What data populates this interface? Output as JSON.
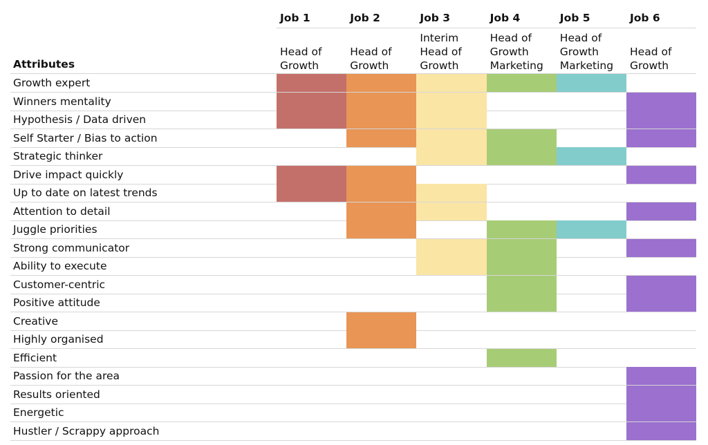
{
  "header": {
    "attributes_label": "Attributes"
  },
  "jobs": [
    {
      "label": "Job 1",
      "title": "Head of Growth",
      "color": "#c4706a"
    },
    {
      "label": "Job 2",
      "title": "Head of Growth",
      "color": "#e89556"
    },
    {
      "label": "Job 3",
      "title": "Interim Head of Growth",
      "color": "#fae5a5"
    },
    {
      "label": "Job 4",
      "title": "Head of Growth Marketing",
      "color": "#a7cc76"
    },
    {
      "label": "Job 5",
      "title": "Head of Growth Marketing",
      "color": "#82cccc"
    },
    {
      "label": "Job 6",
      "title": "Head of Growth",
      "color": "#9b70cf"
    }
  ],
  "rows": [
    {
      "attribute": "Growth expert",
      "marks": [
        true,
        true,
        true,
        true,
        true,
        false
      ]
    },
    {
      "attribute": "Winners mentality",
      "marks": [
        true,
        true,
        true,
        false,
        false,
        true
      ]
    },
    {
      "attribute": "Hypothesis / Data driven",
      "marks": [
        true,
        true,
        true,
        false,
        false,
        true
      ]
    },
    {
      "attribute": "Self Starter / Bias to action",
      "marks": [
        false,
        true,
        true,
        true,
        false,
        true
      ]
    },
    {
      "attribute": "Strategic thinker",
      "marks": [
        false,
        false,
        true,
        true,
        true,
        false
      ]
    },
    {
      "attribute": "Drive impact quickly",
      "marks": [
        true,
        true,
        false,
        false,
        false,
        true
      ]
    },
    {
      "attribute": "Up to date on latest trends",
      "marks": [
        true,
        true,
        true,
        false,
        false,
        false
      ]
    },
    {
      "attribute": "Attention to detail",
      "marks": [
        false,
        true,
        true,
        false,
        false,
        true
      ]
    },
    {
      "attribute": "Juggle priorities",
      "marks": [
        false,
        true,
        false,
        true,
        true,
        false
      ]
    },
    {
      "attribute": "Strong communicator",
      "marks": [
        false,
        false,
        true,
        true,
        false,
        true
      ]
    },
    {
      "attribute": "Ability to execute",
      "marks": [
        false,
        false,
        true,
        true,
        false,
        false
      ]
    },
    {
      "attribute": "Customer-centric",
      "marks": [
        false,
        false,
        false,
        true,
        false,
        true
      ]
    },
    {
      "attribute": "Positive attitude",
      "marks": [
        false,
        false,
        false,
        true,
        false,
        true
      ]
    },
    {
      "attribute": "Creative",
      "marks": [
        false,
        true,
        false,
        false,
        false,
        false
      ]
    },
    {
      "attribute": "Highly organised",
      "marks": [
        false,
        true,
        false,
        false,
        false,
        false
      ]
    },
    {
      "attribute": "Efficient",
      "marks": [
        false,
        false,
        false,
        true,
        false,
        false
      ]
    },
    {
      "attribute": "Passion for the area",
      "marks": [
        false,
        false,
        false,
        false,
        false,
        true
      ]
    },
    {
      "attribute": "Results oriented",
      "marks": [
        false,
        false,
        false,
        false,
        false,
        true
      ]
    },
    {
      "attribute": "Energetic",
      "marks": [
        false,
        false,
        false,
        false,
        false,
        true
      ]
    },
    {
      "attribute": "Hustler / Scrappy approach",
      "marks": [
        false,
        false,
        false,
        false,
        false,
        true
      ]
    }
  ]
}
